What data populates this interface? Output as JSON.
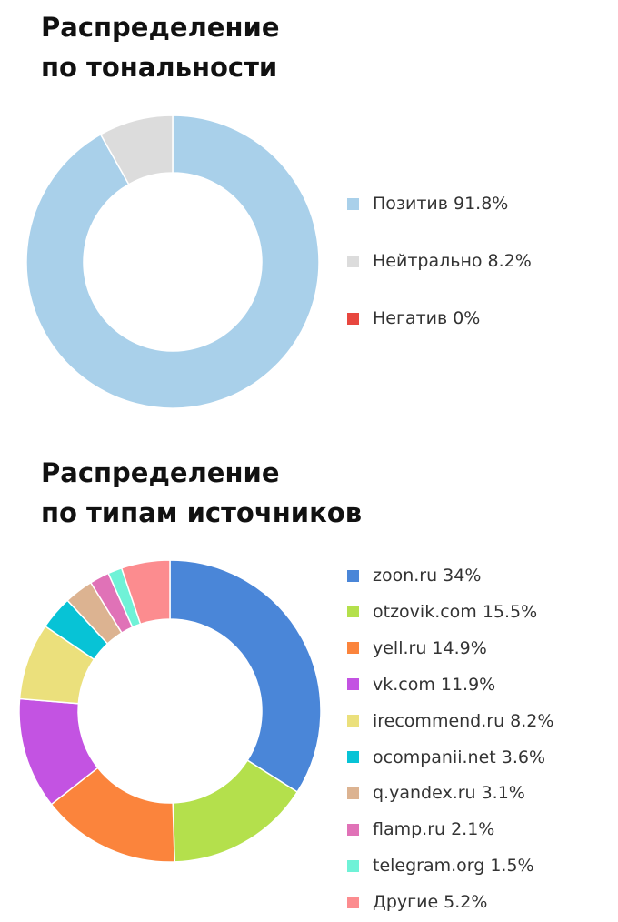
{
  "chart_data": [
    {
      "type": "pie",
      "title": [
        "Распределение",
        "по тональности"
      ],
      "donut": true,
      "legend_position": "right",
      "slices": [
        {
          "label": "Позитив",
          "value": 91.8,
          "display": "91.8%",
          "color": "#a9d0ea"
        },
        {
          "label": "Нейтрально",
          "value": 8.2,
          "display": "8.2%",
          "color": "#dcdcdc"
        },
        {
          "label": "Негатив",
          "value": 0,
          "display": "0%",
          "color": "#e8473f"
        }
      ]
    },
    {
      "type": "pie",
      "title": [
        "Распределение",
        "по типам источников"
      ],
      "donut": true,
      "legend_position": "right",
      "slices": [
        {
          "label": "zoon.ru",
          "value": 34,
          "display": "34%",
          "color": "#4a86d8"
        },
        {
          "label": "otzovik.com",
          "value": 15.5,
          "display": "15.5%",
          "color": "#b4e04c"
        },
        {
          "label": "yell.ru",
          "value": 14.9,
          "display": "14.9%",
          "color": "#fb843c"
        },
        {
          "label": "vk.com",
          "value": 11.9,
          "display": "11.9%",
          "color": "#c353e2"
        },
        {
          "label": "irecommend.ru",
          "value": 8.2,
          "display": "8.2%",
          "color": "#ebe07c"
        },
        {
          "label": "ocompanii.net",
          "value": 3.6,
          "display": "3.6%",
          "color": "#07c3d6"
        },
        {
          "label": "q.yandex.ru",
          "value": 3.1,
          "display": "3.1%",
          "color": "#dcb391"
        },
        {
          "label": "flamp.ru",
          "value": 2.1,
          "display": "2.1%",
          "color": "#e072b7"
        },
        {
          "label": "telegram.org",
          "value": 1.5,
          "display": "1.5%",
          "color": "#6ff2d7"
        },
        {
          "label": "Другие",
          "value": 5.2,
          "display": "5.2%",
          "color": "#fc8c8f"
        }
      ]
    }
  ]
}
